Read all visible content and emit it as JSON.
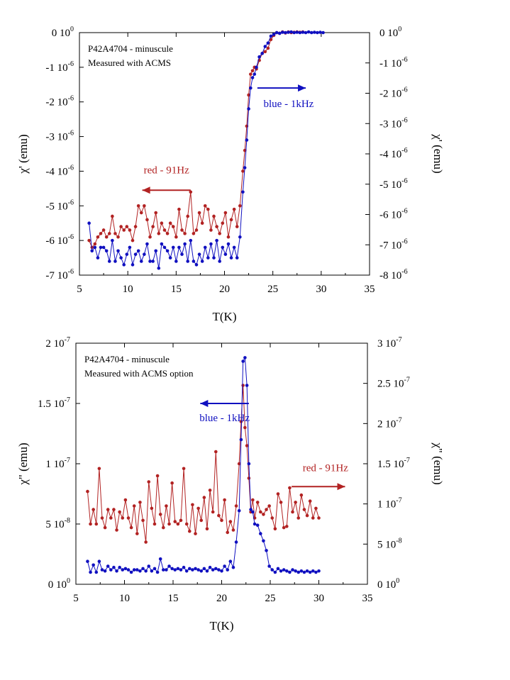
{
  "colors": {
    "red": "#b22222",
    "blue": "#1010c0",
    "axis": "#000000",
    "background": "#ffffff"
  },
  "chart_data": [
    {
      "type": "scatter",
      "title": "",
      "xlabel": "T(K)",
      "ylabel_left": "χ' (emu)",
      "ylabel_right": "χ' (emu)",
      "xlim": [
        5,
        35
      ],
      "ylim_left": [
        -7e-06,
        0
      ],
      "ylim_right": [
        -8e-06,
        0
      ],
      "x_ticks": [
        "5",
        "10",
        "15",
        "20",
        "25",
        "30",
        "35"
      ],
      "y_left_ticks": [
        {
          "value": 0,
          "mant": "0 10",
          "exp": "0"
        },
        {
          "value": -1e-06,
          "mant": "-1 10",
          "exp": "-6"
        },
        {
          "value": -2e-06,
          "mant": "-2 10",
          "exp": "-6"
        },
        {
          "value": -3e-06,
          "mant": "-3 10",
          "exp": "-6"
        },
        {
          "value": -4e-06,
          "mant": "-4 10",
          "exp": "-6"
        },
        {
          "value": -5e-06,
          "mant": "-5 10",
          "exp": "-6"
        },
        {
          "value": -6e-06,
          "mant": "-6 10",
          "exp": "-6"
        },
        {
          "value": -7e-06,
          "mant": "-7 10",
          "exp": "-6"
        }
      ],
      "y_right_ticks": [
        {
          "value": 0,
          "mant": "0 10",
          "exp": "0"
        },
        {
          "value": -1e-06,
          "mant": "-1 10",
          "exp": "-6"
        },
        {
          "value": -2e-06,
          "mant": "-2 10",
          "exp": "-6"
        },
        {
          "value": -3e-06,
          "mant": "-3 10",
          "exp": "-6"
        },
        {
          "value": -4e-06,
          "mant": "-4 10",
          "exp": "-6"
        },
        {
          "value": -5e-06,
          "mant": "-5 10",
          "exp": "-6"
        },
        {
          "value": -6e-06,
          "mant": "-6 10",
          "exp": "-6"
        },
        {
          "value": -7e-06,
          "mant": "-7 10",
          "exp": "-6"
        },
        {
          "value": -8e-06,
          "mant": "-8 10",
          "exp": "-6"
        }
      ],
      "annotation_lines": [
        "P42A4704 - minuscule",
        "Measured with ACMS"
      ],
      "arrows": [
        {
          "label": "red - 91Hz",
          "color": "red",
          "direction": "left",
          "from_x": 16.5,
          "to_x": 11.5,
          "y": -4.55e-06,
          "axis": "left"
        },
        {
          "label": "blue - 1kHz",
          "color": "blue",
          "direction": "right",
          "from_x": 23.4,
          "to_x": 28.4,
          "y": -1.6e-06,
          "axis": "left"
        }
      ],
      "series": [
        {
          "label": "red - 91Hz",
          "color": "red",
          "axis": "left",
          "x": [
            6.0,
            6.3,
            6.6,
            6.9,
            7.2,
            7.5,
            7.8,
            8.1,
            8.4,
            8.7,
            9.0,
            9.3,
            9.6,
            9.9,
            10.2,
            10.5,
            10.8,
            11.1,
            11.4,
            11.7,
            12.0,
            12.3,
            12.6,
            12.9,
            13.2,
            13.5,
            13.8,
            14.1,
            14.4,
            14.7,
            15.0,
            15.3,
            15.6,
            15.9,
            16.2,
            16.5,
            16.8,
            17.1,
            17.4,
            17.7,
            18.0,
            18.3,
            18.6,
            18.9,
            19.2,
            19.5,
            19.8,
            20.1,
            20.4,
            20.7,
            21.0,
            21.3,
            21.6,
            21.9,
            22.1,
            22.3,
            22.5,
            22.7,
            22.9,
            23.1,
            23.3,
            23.6,
            23.9,
            24.2,
            24.5,
            24.8,
            25.1,
            25.4,
            25.7,
            26.0,
            26.3,
            26.6,
            26.9,
            27.2,
            27.5,
            27.8,
            28.1
          ],
          "y": [
            -6e-06,
            -6.2e-06,
            -6.1e-06,
            -5.9e-06,
            -5.8e-06,
            -5.7e-06,
            -5.9e-06,
            -5.8e-06,
            -5.3e-06,
            -5.8e-06,
            -5.9e-06,
            -5.6e-06,
            -5.7e-06,
            -5.6e-06,
            -5.7e-06,
            -6e-06,
            -5.6e-06,
            -5e-06,
            -5.2e-06,
            -5e-06,
            -5.4e-06,
            -5.9e-06,
            -5.6e-06,
            -5.2e-06,
            -5.8e-06,
            -5.5e-06,
            -5.7e-06,
            -5.8e-06,
            -5.5e-06,
            -5.6e-06,
            -5.9e-06,
            -5.1e-06,
            -5.7e-06,
            -5.8e-06,
            -5.3e-06,
            -4.6e-06,
            -5.8e-06,
            -5.7e-06,
            -5.2e-06,
            -5.5e-06,
            -5e-06,
            -5.1e-06,
            -5.7e-06,
            -5.3e-06,
            -5.6e-06,
            -5.8e-06,
            -5.5e-06,
            -5.2e-06,
            -5.9e-06,
            -5.4e-06,
            -5.1e-06,
            -5.6e-06,
            -5e-06,
            -4e-06,
            -3.4e-06,
            -2.7e-06,
            -1.8e-06,
            -1.2e-06,
            -1.1e-06,
            -1e-06,
            -1.05e-06,
            -8e-07,
            -6e-07,
            -5.5e-07,
            -4.5e-07,
            -2e-07,
            -8e-08,
            0.0,
            -2e-08,
            2e-08,
            -1e-08,
            2e-08,
            0.0,
            1e-08,
            2e-08,
            1e-08,
            2e-08
          ]
        },
        {
          "label": "blue - 1kHz",
          "color": "blue",
          "axis": "left",
          "x": [
            6.0,
            6.3,
            6.6,
            6.9,
            7.2,
            7.5,
            7.8,
            8.1,
            8.4,
            8.7,
            9.0,
            9.3,
            9.6,
            9.9,
            10.2,
            10.5,
            10.8,
            11.1,
            11.4,
            11.7,
            12.0,
            12.3,
            12.6,
            12.9,
            13.2,
            13.5,
            13.8,
            14.1,
            14.4,
            14.7,
            15.0,
            15.3,
            15.6,
            15.9,
            16.2,
            16.5,
            16.8,
            17.1,
            17.4,
            17.7,
            18.0,
            18.3,
            18.6,
            18.9,
            19.2,
            19.5,
            19.8,
            20.1,
            20.4,
            20.7,
            21.0,
            21.3,
            21.6,
            21.9,
            22.1,
            22.3,
            22.5,
            22.7,
            22.9,
            23.1,
            23.3,
            23.6,
            23.9,
            24.2,
            24.5,
            24.8,
            25.1,
            25.4,
            25.7,
            26.0,
            26.3,
            26.6,
            26.9,
            27.2,
            27.5,
            27.8,
            28.1,
            28.4,
            28.7,
            29.0,
            29.3,
            29.6,
            29.9,
            30.2
          ],
          "y": [
            -5.5e-06,
            -6.3e-06,
            -6.2e-06,
            -6.5e-06,
            -6.2e-06,
            -6.2e-06,
            -6.3e-06,
            -6.6e-06,
            -6e-06,
            -6.6e-06,
            -6.3e-06,
            -6.5e-06,
            -6.7e-06,
            -6.4e-06,
            -6.2e-06,
            -6.7e-06,
            -6.4e-06,
            -6.3e-06,
            -6.6e-06,
            -6.4e-06,
            -6.1e-06,
            -6.6e-06,
            -6.6e-06,
            -6.3e-06,
            -6.8e-06,
            -6.1e-06,
            -6.2e-06,
            -6.3e-06,
            -6.5e-06,
            -6.2e-06,
            -6.6e-06,
            -6.2e-06,
            -6.4e-06,
            -6.1e-06,
            -6.6e-06,
            -6e-06,
            -6.6e-06,
            -6.7e-06,
            -6.4e-06,
            -6.6e-06,
            -6.2e-06,
            -6.5e-06,
            -6.1e-06,
            -6.5e-06,
            -6e-06,
            -6.6e-06,
            -6.2e-06,
            -6.4e-06,
            -6.1e-06,
            -6.5e-06,
            -6.2e-06,
            -6.5e-06,
            -5.9e-06,
            -4.6e-06,
            -3.9e-06,
            -3.1e-06,
            -2.2e-06,
            -1.6e-06,
            -1.3e-06,
            -1.2e-06,
            -1e-06,
            -7e-07,
            -6e-07,
            -4e-07,
            -3e-07,
            -1e-07,
            -5e-08,
            0.0,
            -2e-08,
            1e-08,
            0.0,
            1e-08,
            2e-08,
            0.0,
            1e-08,
            0.0,
            1e-08,
            0.0,
            2e-08,
            0.0,
            1e-08,
            0.0,
            1e-08,
            0.0
          ]
        }
      ]
    },
    {
      "type": "scatter",
      "title": "",
      "xlabel": "T(K)",
      "ylabel_left": "χ\" (emu)",
      "ylabel_right": "χ\" (emu)",
      "xlim": [
        5,
        35
      ],
      "ylim_left": [
        0,
        2e-07
      ],
      "ylim_right": [
        0,
        3e-07
      ],
      "x_ticks": [
        "5",
        "10",
        "15",
        "20",
        "25",
        "30",
        "35"
      ],
      "y_left_ticks": [
        {
          "value": 0,
          "mant": "0 10",
          "exp": "0"
        },
        {
          "value": 5e-08,
          "mant": "5 10",
          "exp": "-8"
        },
        {
          "value": 1e-07,
          "mant": "1 10",
          "exp": "-7"
        },
        {
          "value": 1.5e-07,
          "mant": "1.5 10",
          "exp": "-7"
        },
        {
          "value": 2e-07,
          "mant": "2 10",
          "exp": "-7"
        }
      ],
      "y_right_ticks": [
        {
          "value": 0,
          "mant": "0 10",
          "exp": "0"
        },
        {
          "value": 5e-08,
          "mant": "5 10",
          "exp": "-8"
        },
        {
          "value": 1e-07,
          "mant": "1 10",
          "exp": "-7"
        },
        {
          "value": 1.5e-07,
          "mant": "1.5 10",
          "exp": "-7"
        },
        {
          "value": 2e-07,
          "mant": "2 10",
          "exp": "-7"
        },
        {
          "value": 2.5e-07,
          "mant": "2.5 10",
          "exp": "-7"
        },
        {
          "value": 3e-07,
          "mant": "3 10",
          "exp": "-7"
        }
      ],
      "annotation_lines": [
        "P42A4704 - minuscule",
        "Measured with ACMS option"
      ],
      "arrows": [
        {
          "label": "blue - 1kHz",
          "color": "blue",
          "direction": "left",
          "from_x": 22.8,
          "to_x": 17.8,
          "y": 1.5e-07,
          "axis": "left"
        },
        {
          "label": "red - 91Hz",
          "color": "red",
          "direction": "right",
          "from_x": 27.2,
          "to_x": 32.7,
          "y": 8.1e-08,
          "axis": "left"
        }
      ],
      "series": [
        {
          "label": "red - 91Hz",
          "color": "red",
          "axis": "left",
          "x": [
            6.2,
            6.5,
            6.8,
            7.1,
            7.4,
            7.7,
            8.0,
            8.3,
            8.6,
            8.9,
            9.2,
            9.5,
            9.8,
            10.1,
            10.4,
            10.7,
            11.0,
            11.3,
            11.6,
            11.9,
            12.2,
            12.5,
            12.8,
            13.1,
            13.4,
            13.7,
            14.0,
            14.3,
            14.6,
            14.9,
            15.2,
            15.5,
            15.8,
            16.1,
            16.4,
            16.7,
            17.0,
            17.3,
            17.6,
            17.9,
            18.2,
            18.5,
            18.8,
            19.1,
            19.4,
            19.7,
            20.0,
            20.3,
            20.6,
            20.9,
            21.2,
            21.5,
            21.8,
            22.0,
            22.2,
            22.4,
            22.6,
            22.8,
            23.0,
            23.2,
            23.4,
            23.7,
            24.0,
            24.3,
            24.6,
            24.9,
            25.2,
            25.5,
            25.8,
            26.1,
            26.4,
            26.7,
            27.0,
            27.3,
            27.6,
            27.9,
            28.2,
            28.5,
            28.8,
            29.1,
            29.4,
            29.7,
            30.0
          ],
          "y": [
            7.7e-08,
            5e-08,
            6.2e-08,
            5e-08,
            9.6e-08,
            5.5e-08,
            4.7e-08,
            6.2e-08,
            5.5e-08,
            6.2e-08,
            4.5e-08,
            6e-08,
            5.5e-08,
            7e-08,
            5.5e-08,
            4.7e-08,
            6.5e-08,
            4.2e-08,
            6.8e-08,
            5.3e-08,
            3.5e-08,
            8.5e-08,
            6.3e-08,
            5e-08,
            9e-08,
            5.8e-08,
            4.7e-08,
            6.5e-08,
            5e-08,
            8.4e-08,
            5.2e-08,
            5e-08,
            5.3e-08,
            9.6e-08,
            5e-08,
            4.4e-08,
            6.6e-08,
            4.2e-08,
            6.3e-08,
            5.3e-08,
            7.2e-08,
            4.6e-08,
            7.8e-08,
            6e-08,
            1.1e-07,
            5.7e-08,
            5.3e-08,
            7e-08,
            4.3e-08,
            5.2e-08,
            4.5e-08,
            6.5e-08,
            1e-07,
            1.35e-07,
            1.65e-07,
            1.3e-07,
            1.15e-07,
            8.8e-08,
            6e-08,
            7e-08,
            5.5e-08,
            6.8e-08,
            6e-08,
            5.8e-08,
            6.2e-08,
            6.5e-08,
            5.5e-08,
            4.6e-08,
            7.5e-08,
            6.8e-08,
            4.7e-08,
            4.8e-08,
            8e-08,
            6e-08,
            6.8e-08,
            5.5e-08,
            7.4e-08,
            6.2e-08,
            5.7e-08,
            6.9e-08,
            5.5e-08,
            6.3e-08,
            5.5e-08
          ]
        },
        {
          "label": "blue - 1kHz",
          "color": "blue",
          "axis": "left",
          "x": [
            6.2,
            6.5,
            6.8,
            7.1,
            7.4,
            7.7,
            8.0,
            8.3,
            8.6,
            8.9,
            9.2,
            9.5,
            9.8,
            10.1,
            10.4,
            10.7,
            11.0,
            11.3,
            11.6,
            11.9,
            12.2,
            12.5,
            12.8,
            13.1,
            13.4,
            13.7,
            14.0,
            14.3,
            14.6,
            14.9,
            15.2,
            15.5,
            15.8,
            16.1,
            16.4,
            16.7,
            17.0,
            17.3,
            17.6,
            17.9,
            18.2,
            18.5,
            18.8,
            19.1,
            19.4,
            19.7,
            20.0,
            20.3,
            20.6,
            20.9,
            21.2,
            21.5,
            21.8,
            22.0,
            22.2,
            22.4,
            22.6,
            22.8,
            23.0,
            23.2,
            23.4,
            23.7,
            24.0,
            24.3,
            24.6,
            24.9,
            25.2,
            25.5,
            25.8,
            26.1,
            26.4,
            26.7,
            27.0,
            27.3,
            27.6,
            27.9,
            28.2,
            28.5,
            28.8,
            29.1,
            29.4,
            29.7,
            30.0
          ],
          "y": [
            1.9e-08,
            1e-08,
            1.6e-08,
            1e-08,
            1.9e-08,
            1.2e-08,
            1.1e-08,
            1.5e-08,
            1.2e-08,
            1.4e-08,
            1.1e-08,
            1.4e-08,
            1.2e-08,
            1.3e-08,
            1.2e-08,
            1e-08,
            1.2e-08,
            1.2e-08,
            1.1e-08,
            1.3e-08,
            1.1e-08,
            1.5e-08,
            1.1e-08,
            1.3e-08,
            1e-08,
            2.1e-08,
            1.2e-08,
            1.2e-08,
            1.5e-08,
            1.3e-08,
            1.2e-08,
            1.3e-08,
            1.2e-08,
            1.4e-08,
            1.1e-08,
            1.3e-08,
            1.2e-08,
            1.3e-08,
            1.2e-08,
            1.1e-08,
            1.3e-08,
            1.1e-08,
            1.4e-08,
            1.2e-08,
            1.3e-08,
            1.2e-08,
            1.1e-08,
            1.5e-08,
            1.2e-08,
            1.9e-08,
            1.4e-08,
            3.5e-08,
            6.1e-08,
            1.2e-07,
            1.85e-07,
            1.88e-07,
            1.65e-07,
            1e-07,
            6.2e-08,
            6e-08,
            5e-08,
            4.9e-08,
            4.2e-08,
            3.6e-08,
            2.8e-08,
            1.5e-08,
            1.2e-08,
            1e-08,
            1.3e-08,
            1.1e-08,
            1.2e-08,
            1.1e-08,
            1e-08,
            1.2e-08,
            1.1e-08,
            1e-08,
            1.1e-08,
            1e-08,
            1.1e-08,
            1e-08,
            1.1e-08,
            1e-08,
            1.1e-08
          ]
        }
      ]
    }
  ]
}
